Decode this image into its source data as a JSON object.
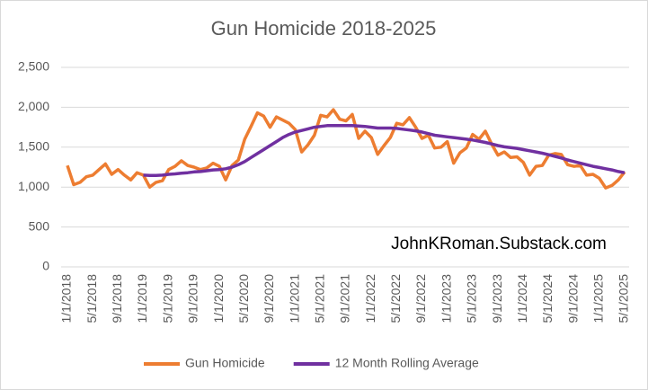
{
  "chart_data": {
    "type": "line",
    "title": "Gun Homicide 2018-2025",
    "annotation": "JohnKRoman.Substack.com",
    "categories": [
      "1/1/2018",
      null,
      null,
      null,
      "5/1/2018",
      null,
      null,
      null,
      "9/1/2018",
      null,
      null,
      null,
      "1/1/2019",
      null,
      null,
      null,
      "5/1/2019",
      null,
      null,
      null,
      "9/1/2019",
      null,
      null,
      null,
      "1/1/2020",
      null,
      null,
      null,
      "5/1/2020",
      null,
      null,
      null,
      "9/1/2020",
      null,
      null,
      null,
      "1/1/2021",
      null,
      null,
      null,
      "5/1/2021",
      null,
      null,
      null,
      "9/1/2021",
      null,
      null,
      null,
      "1/1/2022",
      null,
      null,
      null,
      "5/1/2022",
      null,
      null,
      null,
      "9/1/2022",
      null,
      null,
      null,
      "1/1/2023",
      null,
      null,
      null,
      "5/1/2023",
      null,
      null,
      null,
      "9/1/2023",
      null,
      null,
      null,
      "1/1/2024",
      null,
      null,
      null,
      "5/1/2024",
      null,
      null,
      null,
      "9/1/2024",
      null,
      null,
      null,
      "1/1/2025",
      null,
      null,
      null,
      "5/1/2025"
    ],
    "series": [
      {
        "name": "Gun Homicide",
        "color": "#ED7D31",
        "values": [
          1270,
          1030,
          1060,
          1130,
          1150,
          1220,
          1290,
          1160,
          1220,
          1150,
          1090,
          1180,
          1150,
          1000,
          1060,
          1080,
          1220,
          1260,
          1330,
          1270,
          1250,
          1220,
          1240,
          1300,
          1260,
          1090,
          1270,
          1340,
          1600,
          1760,
          1930,
          1890,
          1750,
          1880,
          1840,
          1800,
          1720,
          1440,
          1530,
          1650,
          1900,
          1880,
          1970,
          1850,
          1830,
          1910,
          1610,
          1700,
          1620,
          1410,
          1520,
          1620,
          1800,
          1780,
          1870,
          1750,
          1610,
          1650,
          1490,
          1500,
          1570,
          1300,
          1430,
          1490,
          1660,
          1600,
          1700,
          1540,
          1400,
          1440,
          1370,
          1380,
          1310,
          1150,
          1260,
          1270,
          1400,
          1420,
          1410,
          1280,
          1260,
          1270,
          1150,
          1160,
          1110,
          990,
          1020,
          1090,
          1190
        ]
      },
      {
        "name": "12 Month Rolling Average",
        "color": "#7030A0",
        "values": [
          null,
          null,
          null,
          null,
          null,
          null,
          null,
          null,
          null,
          null,
          null,
          null,
          1150,
          1145,
          1145,
          1150,
          1160,
          1165,
          1175,
          1180,
          1190,
          1195,
          1205,
          1215,
          1220,
          1230,
          1250,
          1280,
          1320,
          1370,
          1420,
          1470,
          1520,
          1570,
          1620,
          1660,
          1690,
          1710,
          1730,
          1750,
          1760,
          1770,
          1770,
          1770,
          1770,
          1770,
          1765,
          1760,
          1750,
          1740,
          1740,
          1740,
          1735,
          1725,
          1715,
          1705,
          1690,
          1670,
          1650,
          1640,
          1630,
          1620,
          1610,
          1600,
          1590,
          1575,
          1560,
          1540,
          1520,
          1505,
          1495,
          1485,
          1470,
          1455,
          1440,
          1425,
          1405,
          1385,
          1365,
          1340,
          1320,
          1300,
          1280,
          1260,
          1245,
          1230,
          1215,
          1195,
          1180
        ]
      }
    ],
    "ylim": [
      0,
      2500
    ],
    "yticks": [
      0,
      {
        "value": 500,
        "label": "500"
      },
      {
        "value": 1000,
        "label": "1,000"
      },
      {
        "value": 1500,
        "label": "1,500"
      },
      {
        "value": 2000,
        "label": "2,000"
      },
      {
        "value": 2500,
        "label": "2,500"
      }
    ],
    "grid": true
  }
}
